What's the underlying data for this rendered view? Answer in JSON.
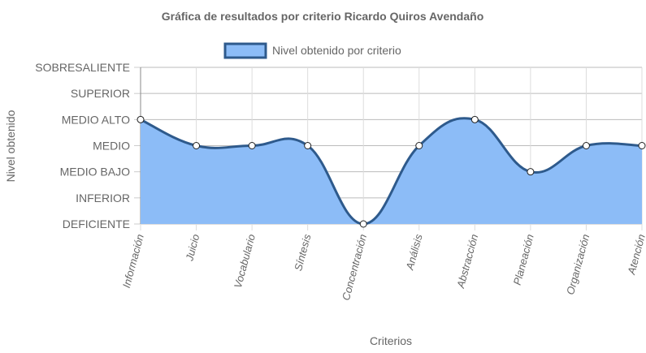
{
  "chart_data": {
    "type": "area",
    "title": "Gráfica de resultados por criterio Ricardo Quiros Avendaño",
    "x_label": "Criterios",
    "y_label": "Nivel obtenido",
    "categories": [
      "Información",
      "Juicio",
      "Vocabulario",
      "Síntesis",
      "Concentración",
      "Análisis",
      "Abstracción",
      "Planeación",
      "Organización",
      "Atención"
    ],
    "series": [
      {
        "name": "Nivel obtenido por criterio",
        "color": "#2e5a8c",
        "fill_color": "#8cbcf7",
        "values": [
          4,
          3,
          3,
          3,
          0,
          3,
          4,
          2,
          3,
          3
        ]
      }
    ],
    "ylim": [
      0,
      6
    ],
    "yticks": [
      {
        "value": 0,
        "label": "DEFICIENTE"
      },
      {
        "value": 1,
        "label": "INFERIOR"
      },
      {
        "value": 2,
        "label": "MEDIO BAJO"
      },
      {
        "value": 3,
        "label": "MEDIO"
      },
      {
        "value": 4,
        "label": "MEDIO ALTO"
      },
      {
        "value": 5,
        "label": "SUPERIOR"
      },
      {
        "value": 6,
        "label": "SOBRESALIENTE"
      }
    ],
    "grid": true
  }
}
